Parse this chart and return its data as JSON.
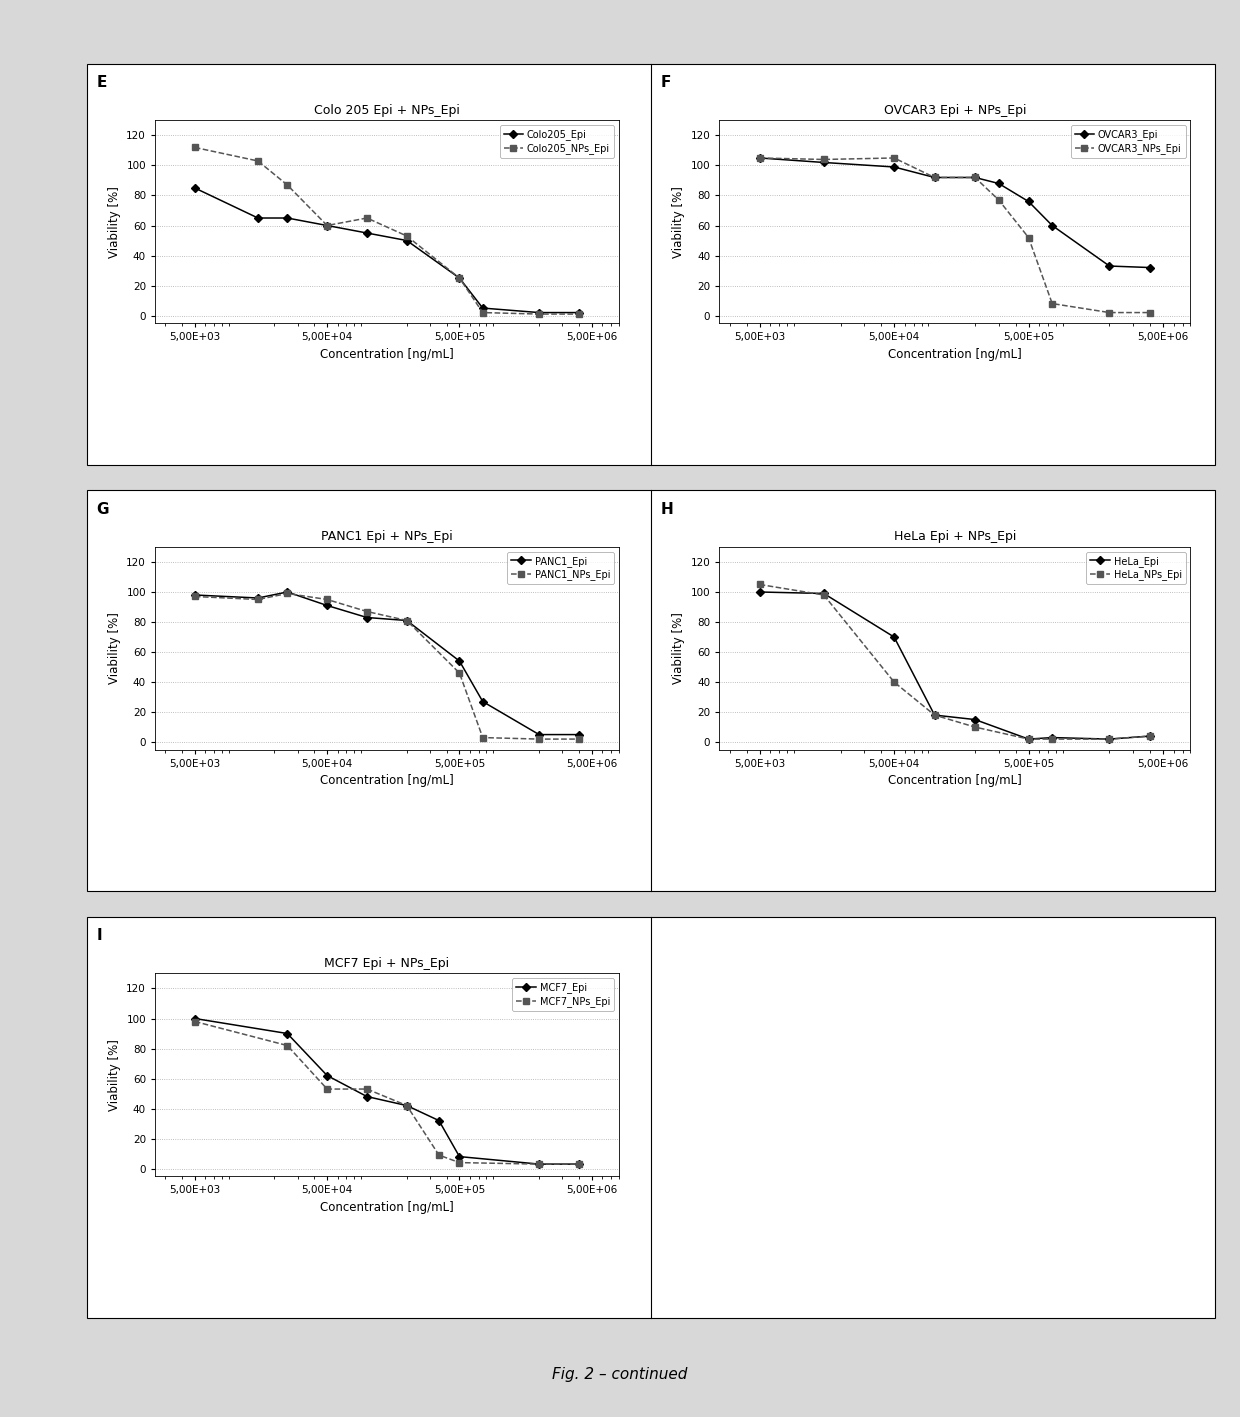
{
  "panels": [
    {
      "label": "E",
      "title": "Colo 205 Epi + NPs_Epi",
      "series": [
        {
          "name": "Colo205_Epi",
          "marker": "D",
          "linestyle": "-",
          "color": "#000000",
          "x": [
            5000,
            15000,
            25000,
            50000,
            100000,
            200000,
            500000,
            750000,
            2000000,
            4000000
          ],
          "y": [
            85,
            65,
            65,
            60,
            55,
            50,
            25,
            5,
            2,
            2
          ]
        },
        {
          "name": "Colo205_NPs_Epi",
          "marker": "s",
          "linestyle": "--",
          "color": "#555555",
          "x": [
            5000,
            15000,
            25000,
            50000,
            100000,
            200000,
            500000,
            750000,
            2000000,
            4000000
          ],
          "y": [
            112,
            103,
            87,
            60,
            65,
            53,
            25,
            2,
            1,
            1
          ]
        }
      ],
      "ylim": [
        -5,
        130
      ],
      "yticks": [
        0,
        20,
        40,
        60,
        80,
        100,
        120
      ],
      "ylabel": "Viability [%]",
      "xlabel": "Concentration [ng/mL]"
    },
    {
      "label": "F",
      "title": "OVCAR3 Epi + NPs_Epi",
      "series": [
        {
          "name": "OVCAR3_Epi",
          "marker": "D",
          "linestyle": "-",
          "color": "#000000",
          "x": [
            5000,
            15000,
            50000,
            100000,
            200000,
            300000,
            500000,
            750000,
            2000000,
            4000000
          ],
          "y": [
            105,
            102,
            99,
            92,
            92,
            88,
            76,
            60,
            33,
            32
          ]
        },
        {
          "name": "OVCAR3_NPs_Epi",
          "marker": "s",
          "linestyle": "--",
          "color": "#555555",
          "x": [
            5000,
            15000,
            50000,
            100000,
            200000,
            300000,
            500000,
            750000,
            2000000,
            4000000
          ],
          "y": [
            105,
            104,
            105,
            92,
            92,
            77,
            52,
            8,
            2,
            2
          ]
        }
      ],
      "ylim": [
        -5,
        130
      ],
      "yticks": [
        0,
        20,
        40,
        60,
        80,
        100,
        120
      ],
      "ylabel": "Viability [%]",
      "xlabel": "Concentration [ng/mL]"
    },
    {
      "label": "G",
      "title": "PANC1 Epi + NPs_Epi",
      "series": [
        {
          "name": "PANC1_Epi",
          "marker": "D",
          "linestyle": "-",
          "color": "#000000",
          "x": [
            5000,
            15000,
            25000,
            50000,
            100000,
            200000,
            500000,
            750000,
            2000000,
            4000000
          ],
          "y": [
            98,
            96,
            100,
            91,
            83,
            81,
            54,
            27,
            5,
            5
          ]
        },
        {
          "name": "PANC1_NPs_Epi",
          "marker": "s",
          "linestyle": "--",
          "color": "#555555",
          "x": [
            5000,
            15000,
            25000,
            50000,
            100000,
            200000,
            500000,
            750000,
            2000000,
            4000000
          ],
          "y": [
            97,
            95,
            99,
            95,
            87,
            81,
            46,
            3,
            2,
            2
          ]
        }
      ],
      "ylim": [
        -5,
        130
      ],
      "yticks": [
        0,
        20,
        40,
        60,
        80,
        100,
        120
      ],
      "ylabel": "Viability [%]",
      "xlabel": "Concentration [ng/mL]"
    },
    {
      "label": "H",
      "title": "HeLa Epi + NPs_Epi",
      "series": [
        {
          "name": "HeLa_Epi",
          "marker": "D",
          "linestyle": "-",
          "color": "#000000",
          "x": [
            5000,
            15000,
            50000,
            100000,
            200000,
            500000,
            750000,
            2000000,
            4000000
          ],
          "y": [
            100,
            99,
            70,
            18,
            15,
            2,
            3,
            2,
            4
          ]
        },
        {
          "name": "HeLa_NPs_Epi",
          "marker": "s",
          "linestyle": "--",
          "color": "#555555",
          "x": [
            5000,
            15000,
            50000,
            100000,
            200000,
            500000,
            750000,
            2000000,
            4000000
          ],
          "y": [
            105,
            98,
            40,
            18,
            10,
            2,
            2,
            2,
            4
          ]
        }
      ],
      "ylim": [
        -5,
        130
      ],
      "yticks": [
        0,
        20,
        40,
        60,
        80,
        100,
        120
      ],
      "ylabel": "Viability [%]",
      "xlabel": "Concentration [ng/mL]"
    },
    {
      "label": "I",
      "title": "MCF7 Epi + NPs_Epi",
      "series": [
        {
          "name": "MCF7_Epi",
          "marker": "D",
          "linestyle": "-",
          "color": "#000000",
          "x": [
            5000,
            25000,
            50000,
            100000,
            200000,
            350000,
            500000,
            2000000,
            4000000
          ],
          "y": [
            100,
            90,
            62,
            48,
            42,
            32,
            8,
            3,
            3
          ]
        },
        {
          "name": "MCF7_NPs_Epi",
          "marker": "s",
          "linestyle": "--",
          "color": "#555555",
          "x": [
            5000,
            25000,
            50000,
            100000,
            200000,
            350000,
            500000,
            2000000,
            4000000
          ],
          "y": [
            98,
            82,
            53,
            53,
            42,
            9,
            4,
            3,
            3
          ]
        }
      ],
      "ylim": [
        -5,
        130
      ],
      "yticks": [
        0,
        20,
        40,
        60,
        80,
        100,
        120
      ],
      "ylabel": "Viability [%]",
      "xlabel": "Concentration [ng/mL]"
    }
  ],
  "xtick_positions": [
    5000,
    50000,
    500000,
    5000000
  ],
  "xtick_labels": [
    "5,00E+03",
    "5,00E+04",
    "5,00E+05",
    "5,00E+06"
  ],
  "figure_caption": "Fig. 2 – continued",
  "background_color": "#d8d8d8",
  "panel_bg": "#ffffff"
}
